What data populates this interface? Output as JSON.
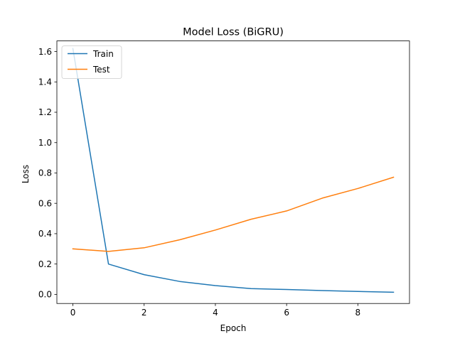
{
  "chart_data": {
    "type": "line",
    "title": "Model Loss (BiGRU)",
    "xlabel": "Epoch",
    "ylabel": "Loss",
    "xlim": [
      -0.45,
      9.45
    ],
    "ylim": [
      -0.06,
      1.67
    ],
    "x": [
      0,
      1,
      2,
      3,
      4,
      5,
      6,
      7,
      8,
      9
    ],
    "xticks": [
      0,
      2,
      4,
      6,
      8
    ],
    "xtick_labels": [
      "0",
      "2",
      "4",
      "6",
      "8"
    ],
    "yticks": [
      0.0,
      0.2,
      0.4,
      0.6,
      0.8,
      1.0,
      1.2,
      1.4,
      1.6
    ],
    "ytick_labels": [
      "0.0",
      "0.2",
      "0.4",
      "0.6",
      "0.8",
      "1.0",
      "1.2",
      "1.4",
      "1.6"
    ],
    "grid": false,
    "legend_position": "top-left",
    "series": [
      {
        "name": "Train",
        "color": "#1f77b4",
        "values": [
          1.62,
          0.2,
          0.13,
          0.085,
          0.058,
          0.038,
          0.032,
          0.025,
          0.019,
          0.014
        ]
      },
      {
        "name": "Test",
        "color": "#ff7f0e",
        "values": [
          0.3,
          0.283,
          0.307,
          0.36,
          0.424,
          0.495,
          0.55,
          0.634,
          0.698,
          0.772
        ]
      }
    ]
  }
}
